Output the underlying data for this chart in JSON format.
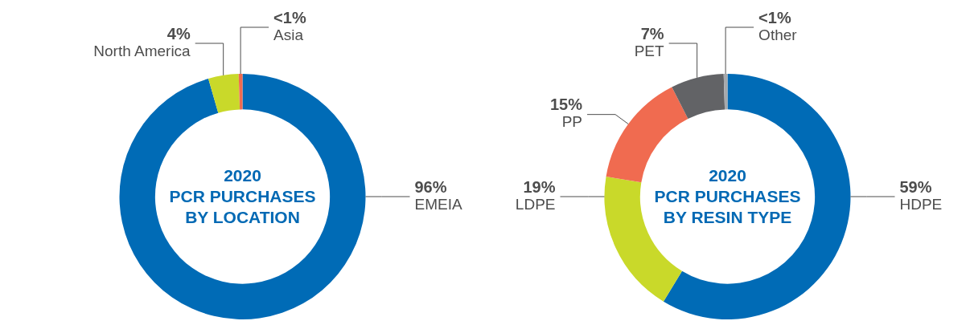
{
  "chart_data": [
    {
      "type": "donut",
      "title": "2020\nPCR PURCHASES\nBY LOCATION",
      "categories": [
        "EMEIA",
        "North America",
        "Asia"
      ],
      "values": [
        96,
        4,
        0.5
      ],
      "value_labels": [
        "96%",
        "4%",
        "<1%"
      ],
      "colors": [
        "#006bb6",
        "#c9d92a",
        "#f06b50"
      ],
      "legend": false
    },
    {
      "type": "donut",
      "title": "2020\nPCR PURCHASES\nBY RESIN TYPE",
      "categories": [
        "HDPE",
        "LDPE",
        "PP",
        "PET",
        "Other"
      ],
      "values": [
        59,
        19,
        15,
        7,
        0.5
      ],
      "value_labels": [
        "59%",
        "19%",
        "15%",
        "7%",
        "<1%"
      ],
      "colors": [
        "#006bb6",
        "#c9d92a",
        "#f06b50",
        "#626366",
        "#a7a9ac"
      ],
      "legend": false
    }
  ]
}
